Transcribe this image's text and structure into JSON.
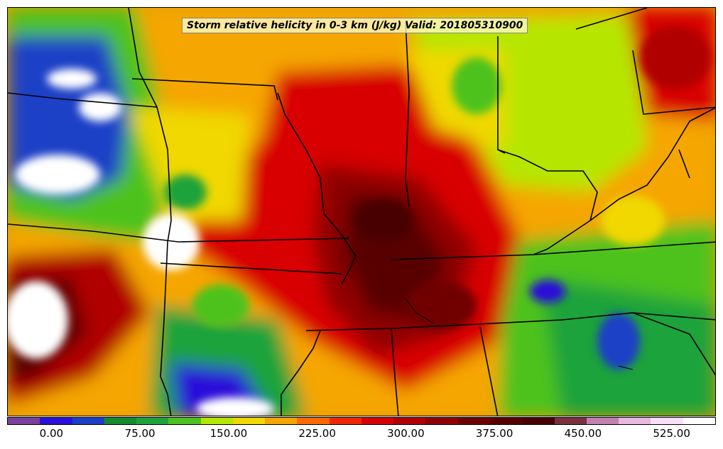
{
  "title": "Storm relative helicity in 0-3 km (J/kg) Valid: 201805310900",
  "colorbar": {
    "min": -37.5,
    "max": 562.5,
    "colors": [
      "#7b3f9e",
      "#2a10d8",
      "#1d3fc6",
      "#158a2e",
      "#1ea33a",
      "#4dc21e",
      "#b6e600",
      "#f0d800",
      "#f5a600",
      "#ff6a00",
      "#f02800",
      "#d80000",
      "#b00000",
      "#900000",
      "#700000",
      "#580000",
      "#480000",
      "#7a3040",
      "#c080b0",
      "#e8b8e0",
      "#f8e0f8",
      "#ffffff"
    ],
    "ticks": [
      "0.00",
      "75.00",
      "150.00",
      "225.00",
      "300.00",
      "375.00",
      "450.00",
      "525.00"
    ],
    "tick_values": [
      0,
      75,
      150,
      225,
      300,
      375,
      450,
      525
    ]
  }
}
